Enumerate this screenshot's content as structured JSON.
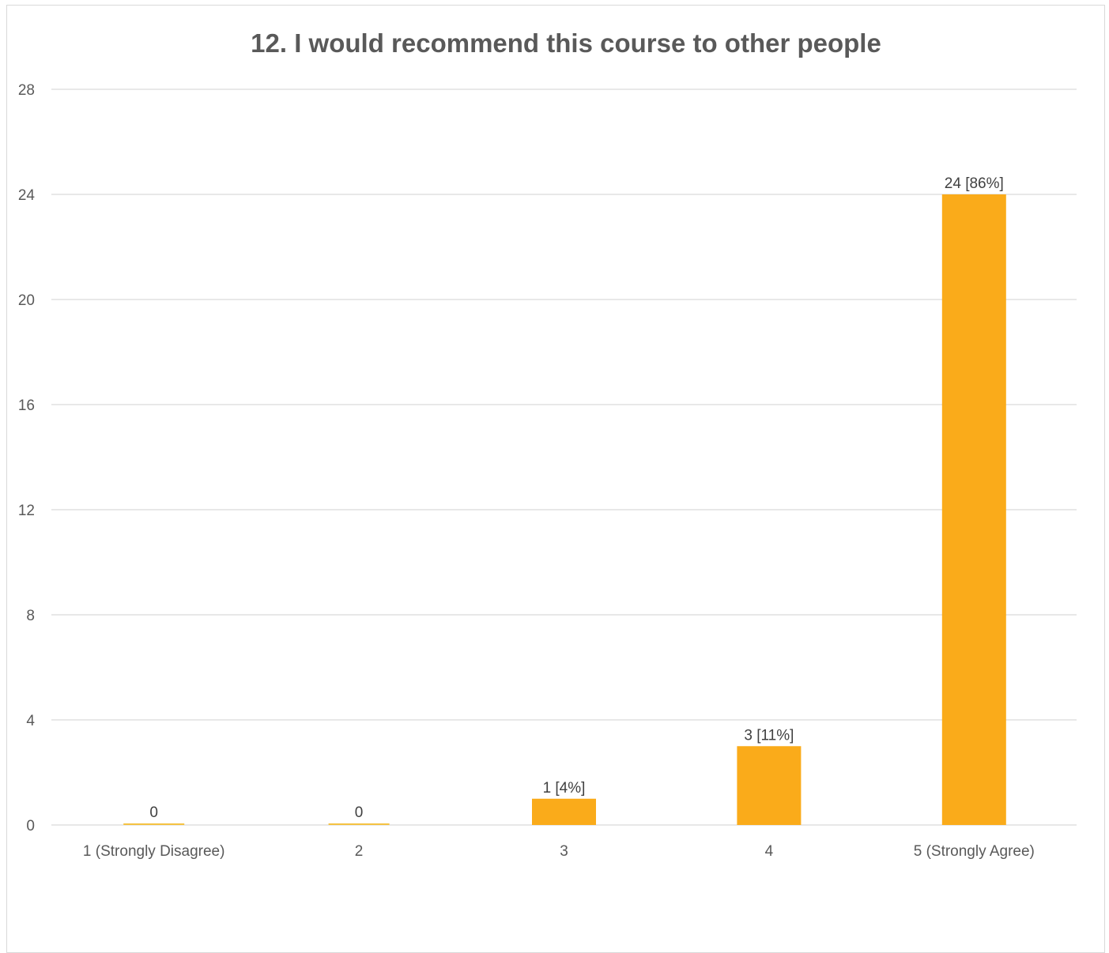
{
  "chart_data": {
    "type": "bar",
    "title": "12. I would recommend this course to other people",
    "xlabel": "",
    "ylabel": "",
    "categories": [
      "1 (Strongly Disagree)",
      "2",
      "3",
      "4",
      "5 (Strongly Agree)"
    ],
    "values": [
      0,
      0,
      1,
      3,
      24
    ],
    "data_labels": [
      "0",
      "0",
      "1 [4%]",
      "3 [11%]",
      "24 [86%]"
    ],
    "ylim": [
      0,
      28
    ],
    "yticks": [
      0,
      4,
      8,
      12,
      16,
      20,
      24,
      28
    ],
    "ytick_labels": [
      "0",
      "4",
      "8",
      "12",
      "16",
      "20",
      "24",
      "28"
    ],
    "grid": true,
    "legend": "none",
    "bar_color": "#FAAB1A",
    "zero_bar_color": "#F5C242"
  }
}
